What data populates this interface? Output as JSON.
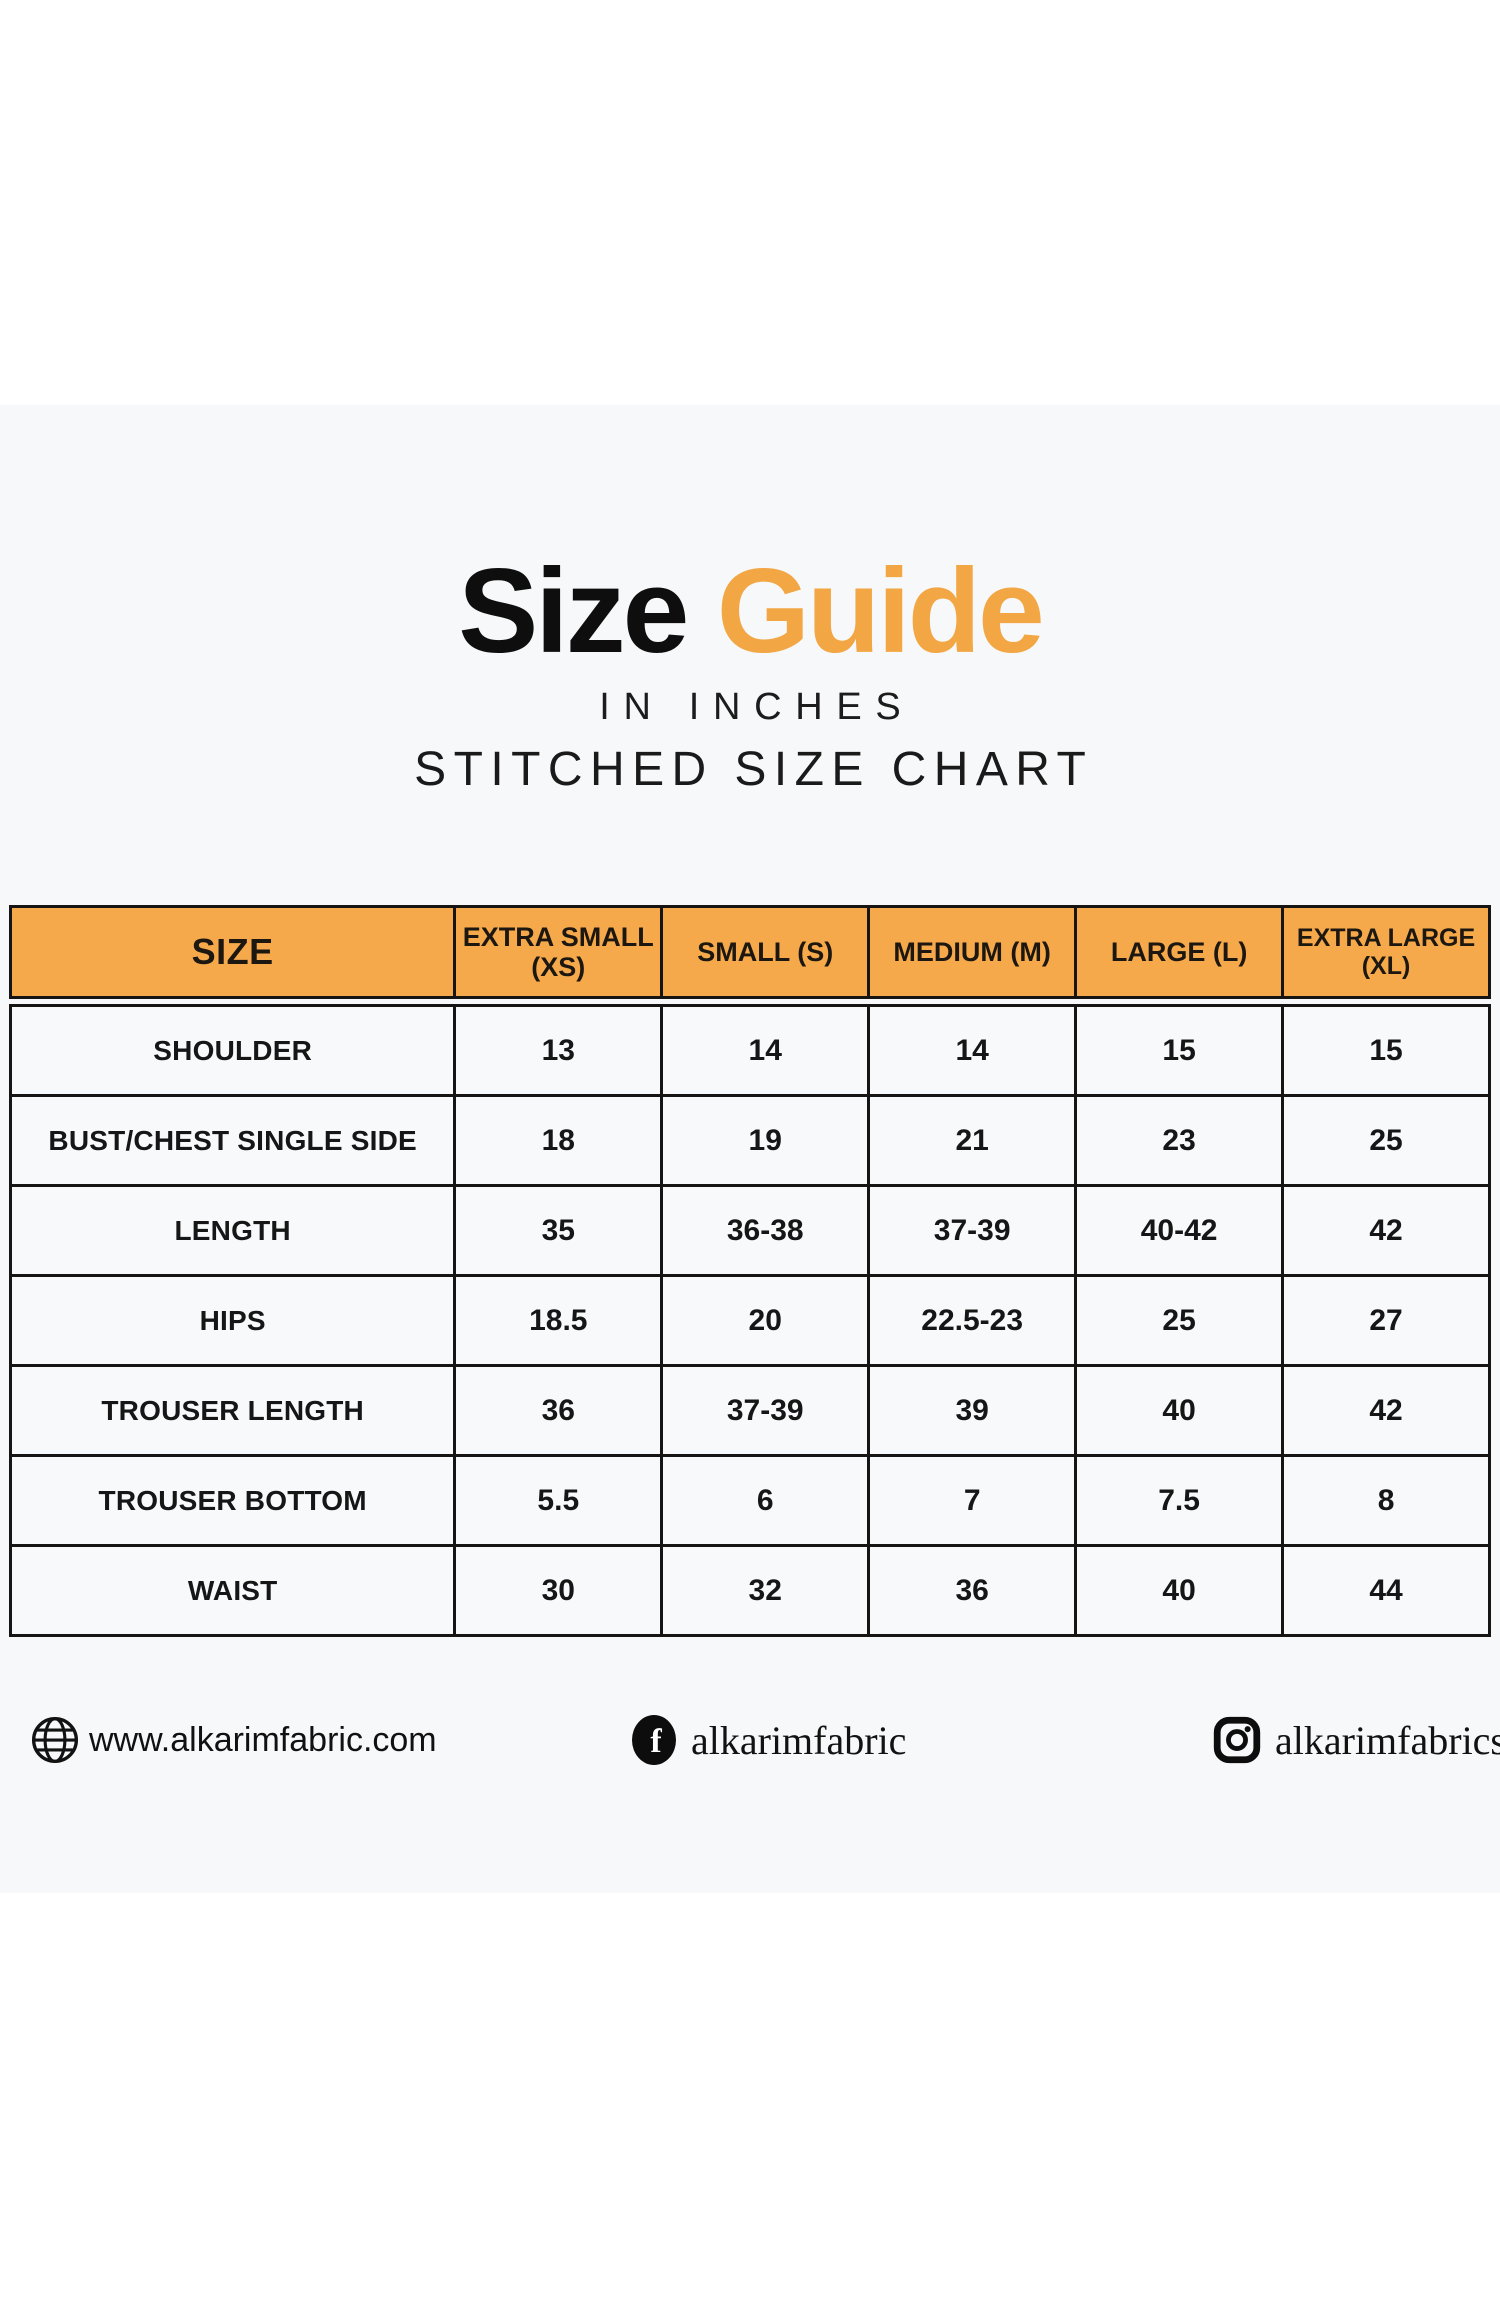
{
  "chart_data": {
    "type": "table",
    "title": "Size Guide",
    "subtitle": "IN INCHES",
    "subtitle2": "STITCHED SIZE CHART",
    "columns": [
      "SIZE",
      "EXTRA SMALL (XS)",
      "SMALL (S)",
      "MEDIUM (M)",
      "LARGE (L)",
      "EXTRA LARGE (XL)"
    ],
    "rows": [
      {
        "label": "SHOULDER",
        "values": [
          "13",
          "14",
          "14",
          "15",
          "15"
        ]
      },
      {
        "label": "BUST/CHEST SINGLE SIDE",
        "values": [
          "18",
          "19",
          "21",
          "23",
          "25"
        ]
      },
      {
        "label": "LENGTH",
        "values": [
          "35",
          "36-38",
          "37-39",
          "40-42",
          "42"
        ]
      },
      {
        "label": "HIPS",
        "values": [
          "18.5",
          "20",
          "22.5-23",
          "25",
          "27"
        ]
      },
      {
        "label": "TROUSER LENGTH",
        "values": [
          "36",
          "37-39",
          "39",
          "40",
          "42"
        ]
      },
      {
        "label": "TROUSER BOTTOM",
        "values": [
          "5.5",
          "6",
          "7",
          "7.5",
          "8"
        ]
      },
      {
        "label": "WAIST",
        "values": [
          "30",
          "32",
          "36",
          "40",
          "44"
        ]
      }
    ]
  },
  "title": {
    "word_black": "Size",
    "word_accent": "Guide"
  },
  "footer": {
    "website": "www.alkarimfabric.com",
    "facebook": "alkarimfabric",
    "instagram": "alkarimfabrics"
  },
  "colors": {
    "accent_title": "#F2A644",
    "accent_header": "#F6A94A",
    "sheet_background": "#f7f8f9",
    "border_black": "#171513",
    "text_black": "#161616"
  }
}
